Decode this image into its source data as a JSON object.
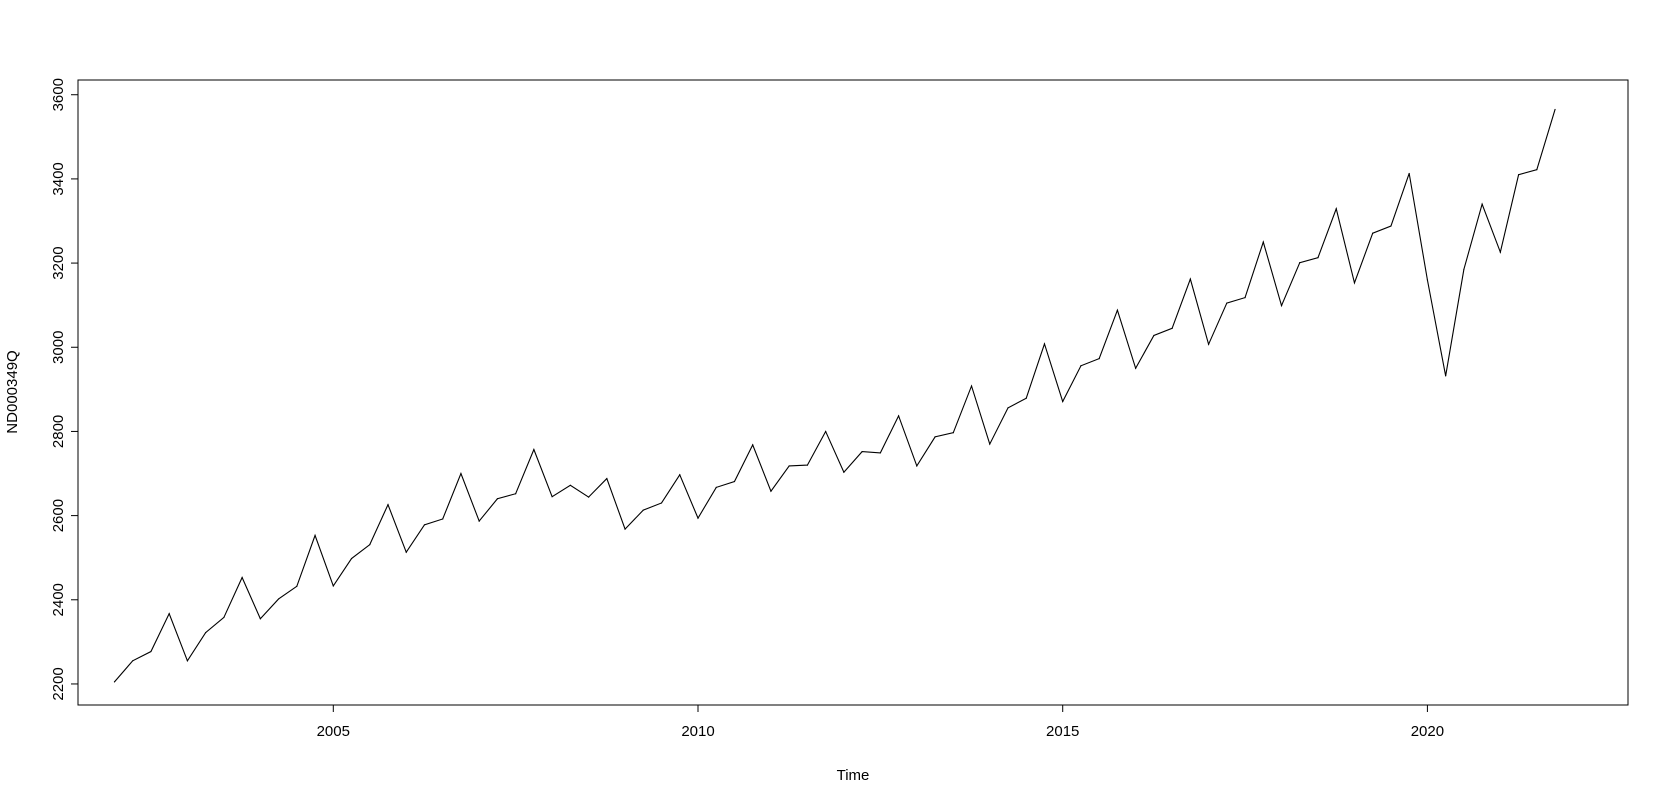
{
  "chart_data": {
    "type": "line",
    "xlabel": "Time",
    "ylabel": "ND000349Q",
    "xlim": [
      2001.5,
      2022.75
    ],
    "ylim": [
      2150,
      3635
    ],
    "x_ticks": [
      2005,
      2010,
      2015,
      2020
    ],
    "x_tick_labels": [
      "2005",
      "2010",
      "2015",
      "2020"
    ],
    "y_ticks": [
      2200,
      2400,
      2600,
      2800,
      3000,
      3200,
      3400,
      3600
    ],
    "y_tick_labels": [
      "2200",
      "2400",
      "2600",
      "2800",
      "3000",
      "3200",
      "3400",
      "3600"
    ],
    "grid": false,
    "line_color": "#000000",
    "series": [
      {
        "start": 2002.0,
        "frequency": 4,
        "values": [
          2205,
          2255,
          2277,
          2367,
          2255,
          2322,
          2358,
          2453,
          2355,
          2402,
          2432,
          2553,
          2433,
          2498,
          2531,
          2626,
          2513,
          2578,
          2592,
          2700,
          2587,
          2640,
          2652,
          2757,
          2645,
          2672,
          2644,
          2688,
          2568,
          2613,
          2630,
          2697,
          2594,
          2667,
          2681,
          2768,
          2658,
          2718,
          2720,
          2800,
          2703,
          2752,
          2749,
          2837,
          2718,
          2787,
          2797,
          2908,
          2770,
          2856,
          2879,
          3008,
          2871,
          2956,
          2973,
          3088,
          2950,
          3028,
          3045,
          3162,
          3007,
          3105,
          3118,
          3250,
          3099,
          3201,
          3213,
          3329,
          3153,
          3271,
          3288,
          3413,
          3160,
          2932,
          3185,
          3340,
          3226,
          3410,
          3422,
          3565
        ]
      }
    ]
  }
}
